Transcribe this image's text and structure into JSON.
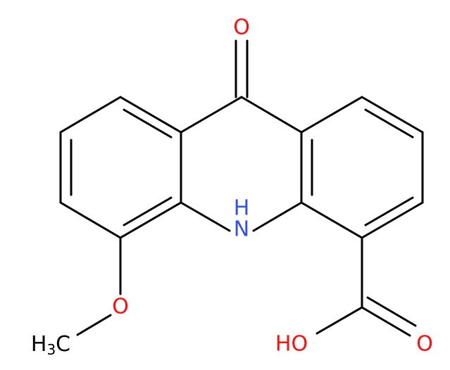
{
  "labels": {
    "ketone_o": "O",
    "nh_n": "N",
    "nh_h": "H",
    "ether_o": "O",
    "methyl": [
      "H",
      "3",
      "C"
    ],
    "hydroxyl": "HO",
    "carbonyl_o": "O"
  }
}
